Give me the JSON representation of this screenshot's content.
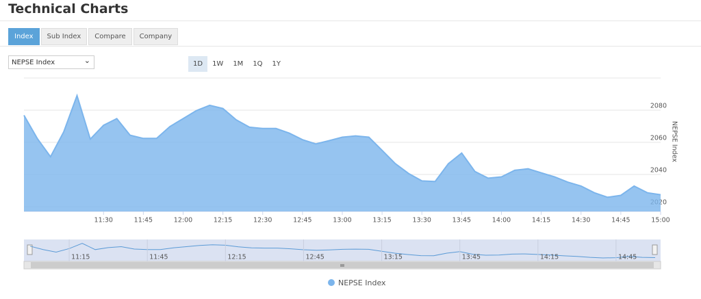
{
  "header": {
    "title": "Technical Charts"
  },
  "tabs": [
    "Index",
    "Sub Index",
    "Compare",
    "Company"
  ],
  "dropdown": {
    "selected": "NEPSE Index"
  },
  "ranges": [
    "1D",
    "1W",
    "1M",
    "1Q",
    "1Y"
  ],
  "chart_data": {
    "type": "area",
    "y_axis_label": "NEPSE Index",
    "x": [
      "11:00",
      "11:05",
      "11:10",
      "11:15",
      "11:20",
      "11:25",
      "11:30",
      "11:35",
      "11:40",
      "11:45",
      "11:50",
      "11:55",
      "12:00",
      "12:05",
      "12:10",
      "12:15",
      "12:20",
      "12:25",
      "12:30",
      "12:35",
      "12:40",
      "12:45",
      "12:50",
      "12:55",
      "13:00",
      "13:05",
      "13:10",
      "13:15",
      "13:20",
      "13:25",
      "13:30",
      "13:35",
      "13:40",
      "13:45",
      "13:50",
      "13:55",
      "14:00",
      "14:05",
      "14:10",
      "14:15",
      "14:20",
      "14:25",
      "14:30",
      "14:35",
      "14:40",
      "14:45",
      "14:50",
      "14:55",
      "15:00"
    ],
    "series": [
      {
        "name": "NEPSE Index",
        "color": "#7cb5ec",
        "values": [
          2076.8,
          2062.4,
          2051,
          2066.5,
          2089,
          2062,
          2070.6,
          2074.7,
          2064.4,
          2062.4,
          2062.4,
          2069.8,
          2074.7,
          2079.7,
          2083,
          2081,
          2074,
          2069.4,
          2068.6,
          2068.6,
          2065.7,
          2061.6,
          2059,
          2061,
          2063.2,
          2064,
          2063.2,
          2055,
          2046.7,
          2040.6,
          2036,
          2035.6,
          2046.7,
          2053.3,
          2041.8,
          2037.7,
          2038.5,
          2042.6,
          2043.5,
          2041,
          2038.5,
          2035.2,
          2032.8,
          2028.6,
          2025.8,
          2027,
          2032.8,
          2028.6,
          2027.4
        ]
      }
    ],
    "xlim": [
      "11:00",
      "15:00"
    ],
    "xticks": [
      "11:30",
      "11:45",
      "12:00",
      "12:15",
      "12:30",
      "12:45",
      "13:00",
      "13:15",
      "13:30",
      "13:45",
      "14:00",
      "14:15",
      "14:30",
      "14:45",
      "15:00"
    ],
    "ylim": [
      2017,
      2100
    ],
    "yticks": [
      2020,
      2040,
      2060,
      2080
    ],
    "grid": true,
    "legend": "bottom",
    "navigator": {
      "xticks": [
        "11:15",
        "11:45",
        "12:15",
        "12:45",
        "13:15",
        "13:45",
        "14:15",
        "14:45"
      ]
    }
  }
}
